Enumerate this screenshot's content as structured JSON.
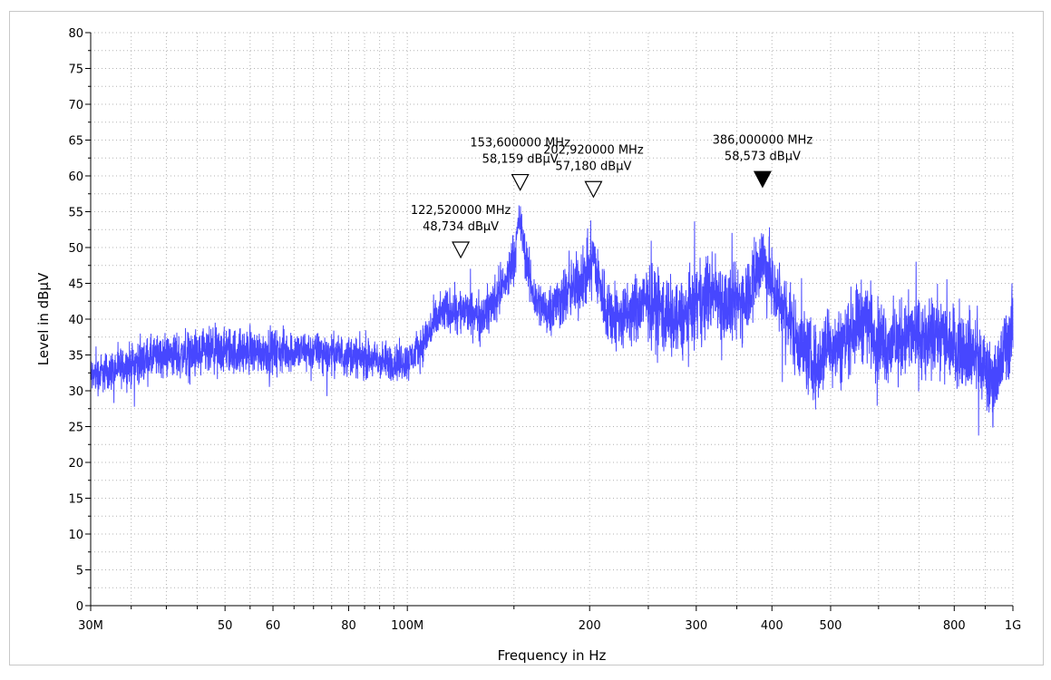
{
  "chart_data": {
    "type": "line",
    "xlabel": "Frequency in Hz",
    "ylabel": "Level in dBµV",
    "x_scale": "log",
    "xlim_mhz": [
      30,
      1000
    ],
    "ylim": [
      0,
      80
    ],
    "grid": true,
    "series_color": "#4747ff",
    "x_tick_labels": [
      {
        "value": 30,
        "label": "30M"
      },
      {
        "value": 50,
        "label": "50"
      },
      {
        "value": 60,
        "label": "60"
      },
      {
        "value": 80,
        "label": "80"
      },
      {
        "value": 100,
        "label": "100M"
      },
      {
        "value": 200,
        "label": "200"
      },
      {
        "value": 300,
        "label": "300"
      },
      {
        "value": 400,
        "label": "400"
      },
      {
        "value": 500,
        "label": "500"
      },
      {
        "value": 800,
        "label": "800"
      },
      {
        "value": 1000,
        "label": "1G"
      }
    ],
    "y_ticks": [
      0,
      5,
      10,
      15,
      20,
      25,
      30,
      35,
      40,
      45,
      50,
      55,
      60,
      65,
      70,
      75,
      80
    ],
    "series": [
      {
        "x_mhz": [
          30,
          33,
          36,
          40,
          45,
          50,
          55,
          60,
          70,
          80,
          90,
          100,
          105,
          110,
          115,
          120,
          125,
          130,
          135,
          140,
          145,
          150,
          153.6,
          157,
          162,
          170,
          180,
          190,
          197,
          202.92,
          207,
          212,
          218,
          225,
          235,
          250,
          265,
          280,
          300,
          320,
          340,
          360,
          375,
          386,
          395,
          405,
          420,
          440,
          460,
          475,
          495,
          520,
          550,
          575,
          600,
          640,
          680,
          720,
          760,
          800,
          840,
          880,
          920,
          950,
          980,
          1000
        ],
        "center": [
          32,
          33,
          34,
          35,
          35,
          35.5,
          35.5,
          35.5,
          35.5,
          35,
          34,
          34,
          36,
          39,
          41,
          41.5,
          41,
          40.5,
          41,
          43,
          45,
          49,
          54,
          48,
          43,
          41,
          43,
          44.5,
          46,
          49,
          45,
          42,
          40.5,
          40,
          41,
          42.5,
          41,
          39.5,
          42,
          44,
          41.5,
          43,
          46,
          49,
          46,
          44,
          41,
          37.5,
          35,
          33,
          37,
          36,
          39.5,
          40,
          37,
          36.5,
          38,
          36.5,
          38,
          36.5,
          36,
          34.5,
          31,
          33,
          37,
          39
        ],
        "spread": [
          4,
          4,
          4.5,
          4.5,
          5,
          5,
          4.5,
          4.5,
          4,
          4,
          4,
          4,
          4,
          4.5,
          4.5,
          4.5,
          4.5,
          4.5,
          4.5,
          5,
          5,
          5,
          4,
          5,
          5,
          5,
          6,
          6.5,
          7,
          6,
          7,
          7,
          7,
          7,
          7,
          7.5,
          8,
          8,
          8,
          8,
          8,
          8,
          8,
          8,
          8,
          8,
          8,
          8,
          8,
          8,
          8,
          8,
          8,
          8,
          8,
          8,
          8,
          8,
          8,
          8,
          8,
          8,
          8,
          8,
          8,
          8
        ]
      }
    ],
    "markers": [
      {
        "freq_mhz": 122.52,
        "level_dbuv": 48.734,
        "filled": false,
        "freq_label": "122,520000 MHz",
        "level_label": "48,734 dBµV"
      },
      {
        "freq_mhz": 153.6,
        "level_dbuv": 58.159,
        "filled": false,
        "freq_label": "153,600000 MHz",
        "level_label": "58,159 dBµV"
      },
      {
        "freq_mhz": 202.92,
        "level_dbuv": 57.18,
        "filled": false,
        "freq_label": "202,920000 MHz",
        "level_label": "57,180 dBµV"
      },
      {
        "freq_mhz": 386.0,
        "level_dbuv": 58.573,
        "filled": true,
        "freq_label": "386,000000 MHz",
        "level_label": "58,573 dBµV"
      }
    ]
  }
}
